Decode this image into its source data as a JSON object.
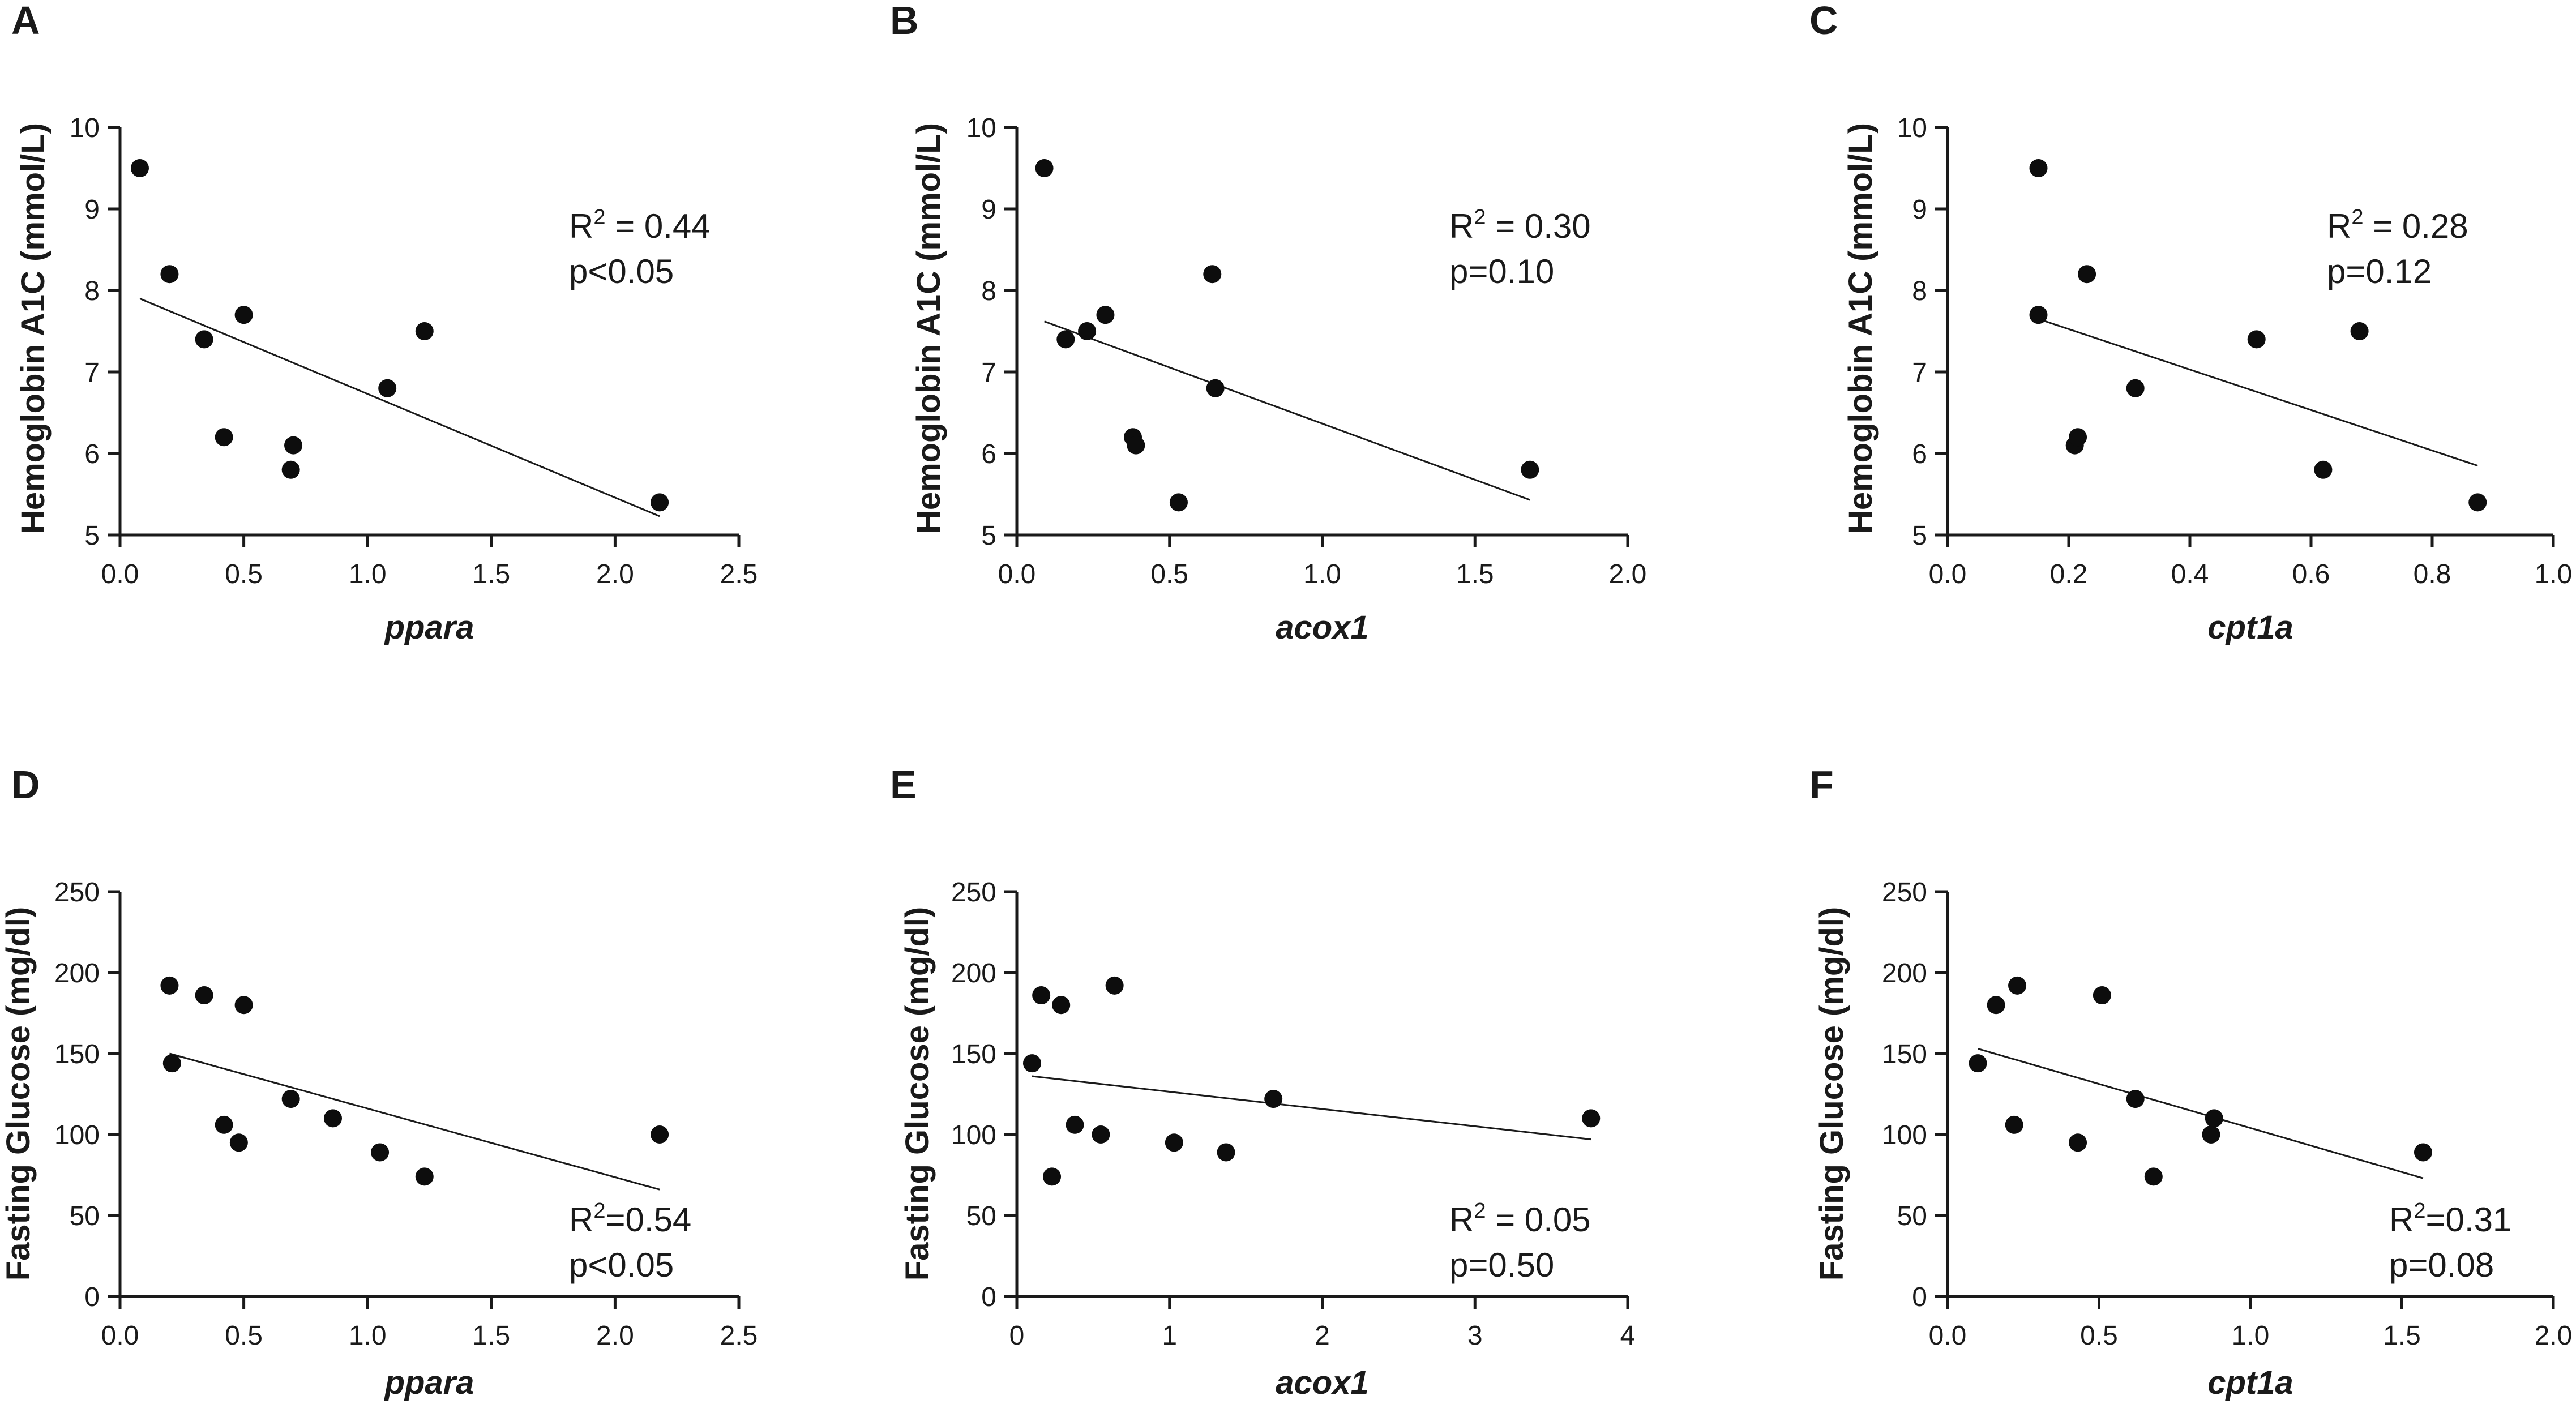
{
  "chart_data": [
    {
      "panel": "A",
      "type": "scatter",
      "xlabel": "ppara",
      "ylabel": "Hemoglobin A1C (mmol/L)",
      "xlim": [
        0,
        2.5
      ],
      "ylim": [
        5,
        10
      ],
      "xticks": [
        0,
        0.5,
        1.0,
        1.5,
        2.0,
        2.5
      ],
      "xtick_labels": [
        "0.0",
        "0.5",
        "1.0",
        "1.5",
        "2.0",
        "2.5"
      ],
      "yticks": [
        5,
        6,
        7,
        8,
        9,
        10
      ],
      "ytick_labels": [
        "5",
        "6",
        "7",
        "8",
        "9",
        "10"
      ],
      "points": [
        [
          0.08,
          9.5
        ],
        [
          0.2,
          8.2
        ],
        [
          0.34,
          7.4
        ],
        [
          0.42,
          6.2
        ],
        [
          0.5,
          7.7
        ],
        [
          0.7,
          6.1
        ],
        [
          0.69,
          5.8
        ],
        [
          1.08,
          6.8
        ],
        [
          1.23,
          7.5
        ],
        [
          2.18,
          5.4
        ]
      ],
      "fit_line": [
        [
          0.08,
          7.9
        ],
        [
          2.18,
          5.23
        ]
      ],
      "stats": {
        "r2_prefix": "R",
        "r2_sup": "2",
        "r2_value": " = 0.44",
        "p": "p<0.05"
      }
    },
    {
      "panel": "B",
      "type": "scatter",
      "xlabel": "acox1",
      "ylabel": "Hemoglobin A1C (mmol/L)",
      "xlim": [
        0,
        2.0
      ],
      "ylim": [
        5,
        10
      ],
      "xticks": [
        0,
        0.5,
        1.0,
        1.5,
        2.0
      ],
      "xtick_labels": [
        "0.0",
        "0.5",
        "1.0",
        "1.5",
        "2.0"
      ],
      "yticks": [
        5,
        6,
        7,
        8,
        9,
        10
      ],
      "ytick_labels": [
        "5",
        "6",
        "7",
        "8",
        "9",
        "10"
      ],
      "points": [
        [
          0.09,
          9.5
        ],
        [
          0.16,
          7.4
        ],
        [
          0.23,
          7.5
        ],
        [
          0.29,
          7.7
        ],
        [
          0.38,
          6.2
        ],
        [
          0.39,
          6.1
        ],
        [
          0.53,
          5.4
        ],
        [
          0.64,
          8.2
        ],
        [
          0.65,
          6.8
        ],
        [
          1.68,
          5.8
        ]
      ],
      "fit_line": [
        [
          0.09,
          7.62
        ],
        [
          1.68,
          5.43
        ]
      ],
      "stats": {
        "r2_prefix": "R",
        "r2_sup": "2",
        "r2_value": " = 0.30",
        "p": "p=0.10"
      }
    },
    {
      "panel": "C",
      "type": "scatter",
      "xlabel": "cpt1a",
      "ylabel": "Hemoglobin A1C (mmol/L)",
      "xlim": [
        0,
        1.0
      ],
      "ylim": [
        5,
        10
      ],
      "xticks": [
        0,
        0.2,
        0.4,
        0.6,
        0.8,
        1.0
      ],
      "xtick_labels": [
        "0.0",
        "0.2",
        "0.4",
        "0.6",
        "0.8",
        "1.0"
      ],
      "yticks": [
        5,
        6,
        7,
        8,
        9,
        10
      ],
      "ytick_labels": [
        "5",
        "6",
        "7",
        "8",
        "9",
        "10"
      ],
      "points": [
        [
          0.15,
          9.5
        ],
        [
          0.15,
          7.7
        ],
        [
          0.21,
          6.1
        ],
        [
          0.215,
          6.2
        ],
        [
          0.23,
          8.2
        ],
        [
          0.31,
          6.8
        ],
        [
          0.51,
          7.4
        ],
        [
          0.62,
          5.8
        ],
        [
          0.68,
          7.5
        ],
        [
          0.875,
          5.4
        ]
      ],
      "fit_line": [
        [
          0.15,
          7.65
        ],
        [
          0.875,
          5.85
        ]
      ],
      "stats": {
        "r2_prefix": "R",
        "r2_sup": "2",
        "r2_value": " = 0.28",
        "p": "p=0.12"
      }
    },
    {
      "panel": "D",
      "type": "scatter",
      "xlabel": "ppara",
      "ylabel": "Fasting Glucose (mg/dl)",
      "xlim": [
        0,
        2.5
      ],
      "ylim": [
        0,
        250
      ],
      "xticks": [
        0,
        0.5,
        1.0,
        1.5,
        2.0,
        2.5
      ],
      "xtick_labels": [
        "0.0",
        "0.5",
        "1.0",
        "1.5",
        "2.0",
        "2.5"
      ],
      "yticks": [
        0,
        50,
        100,
        150,
        200,
        250
      ],
      "ytick_labels": [
        "0",
        "50",
        "100",
        "150",
        "200",
        "250"
      ],
      "points": [
        [
          0.2,
          192
        ],
        [
          0.21,
          144
        ],
        [
          0.34,
          186
        ],
        [
          0.5,
          180
        ],
        [
          0.42,
          106
        ],
        [
          0.48,
          95
        ],
        [
          0.69,
          122
        ],
        [
          0.86,
          110
        ],
        [
          1.05,
          89
        ],
        [
          1.23,
          74
        ],
        [
          2.18,
          100
        ]
      ],
      "fit_line": [
        [
          0.2,
          150
        ],
        [
          2.18,
          66
        ]
      ],
      "stats": {
        "r2_prefix": "R",
        "r2_sup": "2",
        "r2_value": "=0.54",
        "p": "p<0.05"
      }
    },
    {
      "panel": "E",
      "type": "scatter",
      "xlabel": "acox1",
      "ylabel": "Fasting Glucose (mg/dl)",
      "xlim": [
        0,
        4
      ],
      "ylim": [
        0,
        250
      ],
      "xticks": [
        0,
        1,
        2,
        3,
        4
      ],
      "xtick_labels": [
        "0",
        "1",
        "2",
        "3",
        "4"
      ],
      "yticks": [
        0,
        50,
        100,
        150,
        200,
        250
      ],
      "ytick_labels": [
        "0",
        "50",
        "100",
        "150",
        "200",
        "250"
      ],
      "points": [
        [
          0.1,
          144
        ],
        [
          0.16,
          186
        ],
        [
          0.23,
          74
        ],
        [
          0.29,
          180
        ],
        [
          0.38,
          106
        ],
        [
          0.55,
          100
        ],
        [
          0.64,
          192
        ],
        [
          1.03,
          95
        ],
        [
          1.37,
          89
        ],
        [
          1.68,
          122
        ],
        [
          3.76,
          110
        ]
      ],
      "fit_line": [
        [
          0.1,
          136
        ],
        [
          3.76,
          97
        ]
      ],
      "stats": {
        "r2_prefix": "R",
        "r2_sup": "2",
        "r2_value": " = 0.05",
        "p": "p=0.50"
      }
    },
    {
      "panel": "F",
      "type": "scatter",
      "xlabel": "cpt1a",
      "ylabel": "Fasting Glucose (mg/dl)",
      "xlim": [
        0,
        2.0
      ],
      "ylim": [
        0,
        250
      ],
      "xticks": [
        0,
        0.5,
        1.0,
        1.5,
        2.0
      ],
      "xtick_labels": [
        "0.0",
        "0.5",
        "1.0",
        "1.5",
        "2.0"
      ],
      "yticks": [
        0,
        50,
        100,
        150,
        200,
        250
      ],
      "ytick_labels": [
        "0",
        "50",
        "100",
        "150",
        "200",
        "250"
      ],
      "points": [
        [
          0.1,
          144
        ],
        [
          0.16,
          180
        ],
        [
          0.22,
          106
        ],
        [
          0.23,
          192
        ],
        [
          0.43,
          95
        ],
        [
          0.51,
          186
        ],
        [
          0.62,
          122
        ],
        [
          0.68,
          74
        ],
        [
          0.87,
          100
        ],
        [
          0.88,
          110
        ],
        [
          1.57,
          89
        ]
      ],
      "fit_line": [
        [
          0.1,
          153
        ],
        [
          1.57,
          73
        ]
      ],
      "stats": {
        "r2_prefix": "R",
        "r2_sup": "2",
        "r2_value": "=0.31",
        "p": "p=0.08"
      }
    }
  ]
}
